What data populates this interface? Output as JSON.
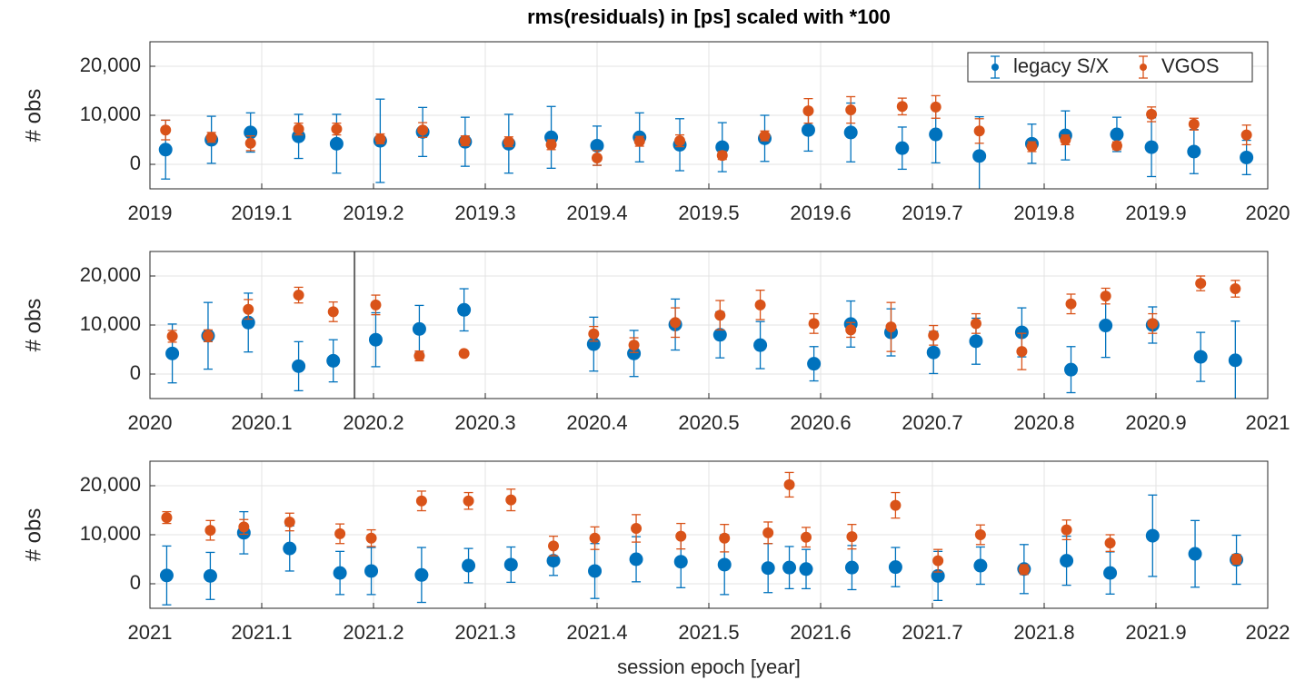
{
  "chart_data": [
    {
      "type": "errorbar",
      "title": "rms(residuals) in [ps] scaled with *100",
      "ylabel": "# obs",
      "xlim": [
        2019,
        2020
      ],
      "xticks": [
        2019,
        2019.1,
        2019.2,
        2019.3,
        2019.4,
        2019.5,
        2019.6,
        2019.7,
        2019.8,
        2019.9,
        2020
      ],
      "ylim": [
        -5000,
        25000
      ],
      "yticks": [
        0,
        {
          "value": 10000,
          "label": "10,000"
        },
        {
          "value": 20000,
          "label": "20,000"
        }
      ],
      "grid": true,
      "legend": "northeast",
      "x": [
        2019.014,
        2019.055,
        2019.09,
        2019.133,
        2019.167,
        2019.206,
        2019.244,
        2019.282,
        2019.321,
        2019.359,
        2019.4,
        2019.438,
        2019.474,
        2019.512,
        2019.55,
        2019.589,
        2019.627,
        2019.673,
        2019.703,
        2019.742,
        2019.789,
        2019.819,
        2019.865,
        2019.896,
        2019.934,
        2019.981
      ],
      "series": [
        {
          "name": "legacy S/X",
          "color": "#0072bd",
          "values": [
            3000,
            5000,
            6500,
            5700,
            4200,
            4800,
            6600,
            4600,
            4200,
            5500,
            3800,
            5500,
            4000,
            3500,
            5300,
            7000,
            6500,
            3300,
            6100,
            1700,
            4200,
            5900,
            6100,
            3500,
            2600,
            1400
          ],
          "errors": [
            6000,
            4800,
            4000,
            4500,
            6000,
            8500,
            5000,
            5000,
            6000,
            6300,
            4000,
            5000,
            5300,
            5000,
            4700,
            4300,
            6000,
            4300,
            5800,
            8000,
            4000,
            5000,
            3500,
            6000,
            4500,
            3500
          ]
        },
        {
          "name": "VGOS",
          "color": "#d95319",
          "values": [
            7000,
            5500,
            4300,
            7200,
            7200,
            5200,
            7000,
            4800,
            4600,
            4000,
            1300,
            4700,
            4800,
            1800,
            5800,
            10900,
            11100,
            11800,
            11700,
            6800,
            3600,
            5000,
            3800,
            10200,
            8200,
            6000
          ],
          "errors": [
            2000,
            1000,
            1500,
            1200,
            1200,
            1000,
            1500,
            1000,
            1000,
            1000,
            1500,
            1000,
            1200,
            800,
            1000,
            2500,
            2700,
            1700,
            2300,
            2500,
            1000,
            1000,
            800,
            1500,
            1200,
            2000
          ]
        }
      ]
    },
    {
      "type": "errorbar",
      "ylabel": "# obs",
      "xlim": [
        2020,
        2021
      ],
      "xticks": [
        2020,
        2020.1,
        2020.2,
        2020.3,
        2020.4,
        2020.5,
        2020.6,
        2020.7,
        2020.8,
        2020.9,
        2021
      ],
      "ylim": [
        -5000,
        25000
      ],
      "yticks": [
        0,
        {
          "value": 10000,
          "label": "10,000"
        },
        {
          "value": 20000,
          "label": "20,000"
        }
      ],
      "grid": true,
      "vline": 2020.183,
      "x": [
        2020.02,
        2020.052,
        2020.088,
        2020.133,
        2020.164,
        2020.202,
        2020.241,
        2020.281,
        2020.397,
        2020.433,
        2020.47,
        2020.51,
        2020.546,
        2020.594,
        2020.627,
        2020.663,
        2020.701,
        2020.739,
        2020.78,
        2020.824,
        2020.855,
        2020.897,
        2020.94,
        2020.971
      ],
      "series": [
        {
          "color": "#0072bd",
          "values": [
            4200,
            7800,
            10500,
            1600,
            2700,
            7000,
            9200,
            13100,
            6100,
            4200,
            10100,
            8000,
            5900,
            2100,
            10200,
            8500,
            4400,
            6700,
            8500,
            900,
            9900,
            10000,
            3500,
            2800
          ],
          "errors": [
            6000,
            6800,
            6000,
            5000,
            4300,
            5500,
            4800,
            4300,
            5500,
            4700,
            5200,
            4700,
            4800,
            3500,
            4700,
            4800,
            4300,
            4700,
            5000,
            4700,
            6500,
            3700,
            5000,
            8000
          ]
        },
        {
          "color": "#d95319",
          "values": [
            7700,
            7800,
            13200,
            16100,
            12700,
            14100,
            3700,
            4200,
            8200,
            5900,
            10500,
            12000,
            14100,
            10300,
            9000,
            9600,
            7900,
            10300,
            4600,
            14300,
            15900,
            10300,
            18500,
            17400
          ],
          "errors": [
            1200,
            1200,
            2000,
            1600,
            2000,
            2000,
            1000,
            0,
            1500,
            1500,
            3000,
            3000,
            3000,
            2000,
            1500,
            5000,
            2000,
            2000,
            3700,
            2000,
            1600,
            2000,
            1500,
            1700
          ]
        }
      ]
    },
    {
      "type": "errorbar",
      "ylabel": "# obs",
      "xlabel": "session epoch [year]",
      "xlim": [
        2021,
        2022
      ],
      "xticks": [
        2021,
        2021.1,
        2021.2,
        2021.3,
        2021.4,
        2021.5,
        2021.6,
        2021.7,
        2021.8,
        2021.9,
        2022
      ],
      "ylim": [
        -5000,
        25000
      ],
      "yticks": [
        0,
        {
          "value": 10000,
          "label": "10,000"
        },
        {
          "value": 20000,
          "label": "20,000"
        }
      ],
      "grid": true,
      "x": [
        2021.015,
        2021.054,
        2021.084,
        2021.125,
        2021.17,
        2021.198,
        2021.243,
        2021.285,
        2021.323,
        2021.361,
        2021.398,
        2021.435,
        2021.475,
        2021.514,
        2021.553,
        2021.572,
        2021.587,
        2021.628,
        2021.667,
        2021.705,
        2021.743,
        2021.782,
        2021.82,
        2021.859,
        2021.897,
        2021.935,
        2021.972
      ],
      "series": [
        {
          "color": "#0072bd",
          "values": [
            1700,
            1600,
            10400,
            7200,
            2200,
            2600,
            1800,
            3700,
            3900,
            4700,
            2600,
            5000,
            4500,
            3900,
            3200,
            3300,
            3000,
            3300,
            3400,
            1600,
            3700,
            3000,
            4700,
            2200,
            9800,
            6100,
            4900
          ],
          "errors": [
            6000,
            4800,
            4300,
            4600,
            4400,
            4800,
            5600,
            3500,
            3600,
            3000,
            5600,
            4600,
            5300,
            6100,
            5000,
            4300,
            4000,
            4500,
            4000,
            5000,
            3800,
            5000,
            5000,
            4300,
            8300,
            6800,
            5000
          ]
        },
        {
          "color": "#d95319",
          "values": [
            13500,
            10900,
            11600,
            12600,
            10200,
            9300,
            16900,
            16900,
            17100,
            7700,
            9300,
            11300,
            9700,
            9300,
            10400,
            20200,
            9500,
            9600,
            16000,
            4700,
            10000,
            2900,
            11000,
            8300,
            null,
            null,
            5000
          ],
          "errors": [
            1200,
            2000,
            1500,
            1800,
            2000,
            1700,
            2000,
            1700,
            2200,
            2000,
            2300,
            2800,
            2600,
            2800,
            2200,
            2500,
            2000,
            2500,
            2600,
            2300,
            2000,
            1000,
            2000,
            1700,
            null,
            null,
            1000
          ]
        }
      ]
    }
  ]
}
